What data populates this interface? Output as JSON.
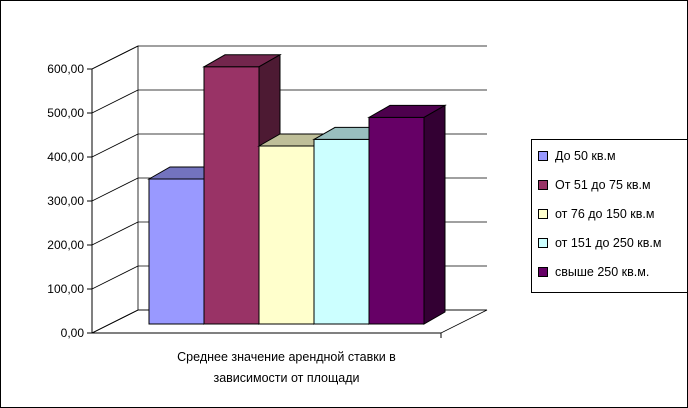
{
  "chart_data": {
    "type": "bar",
    "categories": [
      "Среднее значение арендной ставки в зависимости от площади"
    ],
    "category_lines": [
      "Среднее значение арендной ставки в",
      "зависимости от площади"
    ],
    "series": [
      {
        "name": "До 50 кв.м",
        "values": [
          350
        ],
        "color": "#9999FF"
      },
      {
        "name": "От 51 до 75 кв.м",
        "values": [
          605
        ],
        "color": "#993366"
      },
      {
        "name": "от 76 до 150 кв.м",
        "values": [
          425
        ],
        "color": "#FFFFCC"
      },
      {
        "name": "от 151 до 250 кв.м",
        "values": [
          440
        ],
        "color": "#CCFFFF"
      },
      {
        "name": "свыше 250 кв.м.",
        "values": [
          490
        ],
        "color": "#660066"
      }
    ],
    "ylim": [
      0,
      600
    ],
    "yticks": [
      "0,00",
      "100,00",
      "200,00",
      "300,00",
      "400,00",
      "500,00",
      "600,00"
    ],
    "grid": true,
    "legend": "right",
    "three_d": true
  }
}
